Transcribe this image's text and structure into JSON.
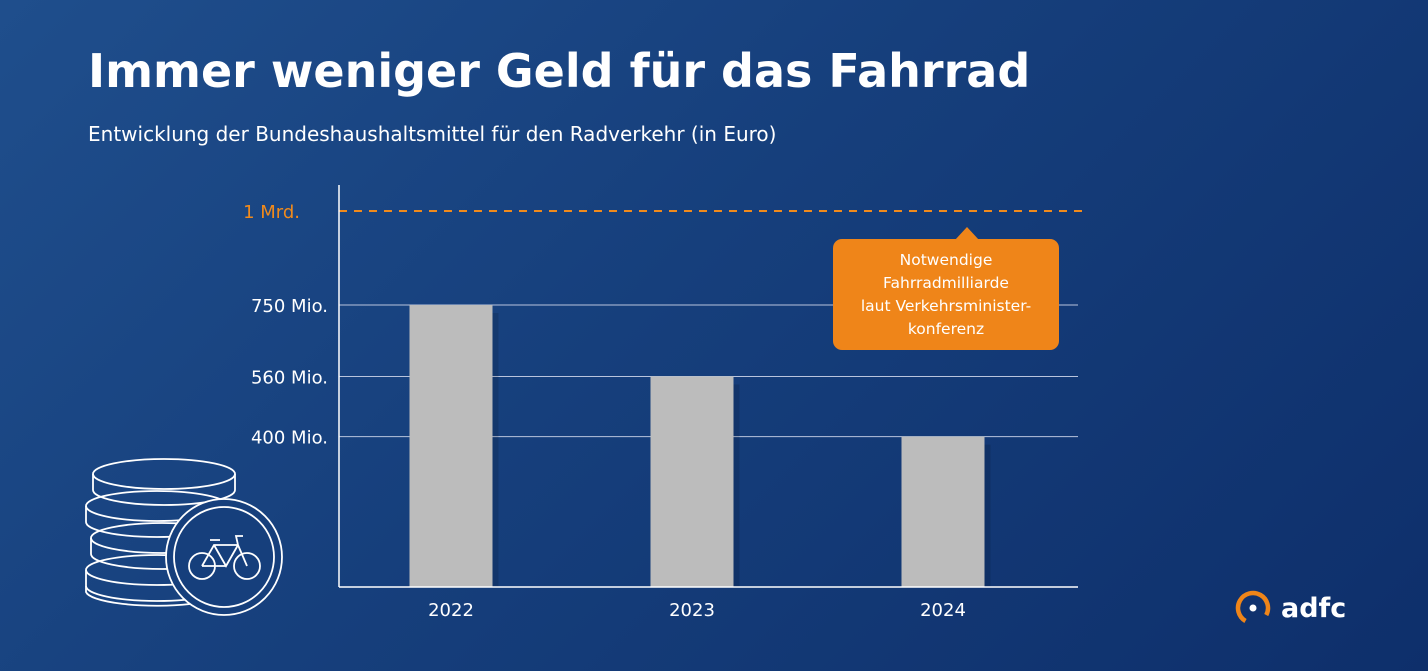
{
  "title": "Immer weniger Geld für das Fahrrad",
  "subtitle": "Entwicklung der Bundeshaushaltsmittel für den Radverkehr (in Euro)",
  "chart_data": {
    "type": "bar",
    "categories": [
      "2022",
      "2023",
      "2024"
    ],
    "values": [
      750,
      560,
      400
    ],
    "unit": "Mio. Euro",
    "ylim": [
      0,
      1000
    ],
    "yticks": [
      {
        "value": 400,
        "label": "400 Mio."
      },
      {
        "value": 560,
        "label": "560 Mio."
      },
      {
        "value": 750,
        "label": "750 Mio."
      }
    ],
    "reference_line": {
      "value": 1000,
      "label": "1 Mrd.",
      "style": "dashed",
      "color": "#f08a1c"
    },
    "annotation": {
      "lines": [
        "Notwendige",
        "Fahrradmilliarde",
        "laut Verkehrsminister-",
        "konferenz"
      ],
      "color": "#ef8519"
    },
    "bar_color": "#bcbcbc",
    "grid": true
  },
  "logo": {
    "text": "adfc",
    "accent": "#ef8519"
  },
  "colors": {
    "background": "#163f7c",
    "accent": "#ef8519",
    "bar": "#bcbcbc"
  }
}
